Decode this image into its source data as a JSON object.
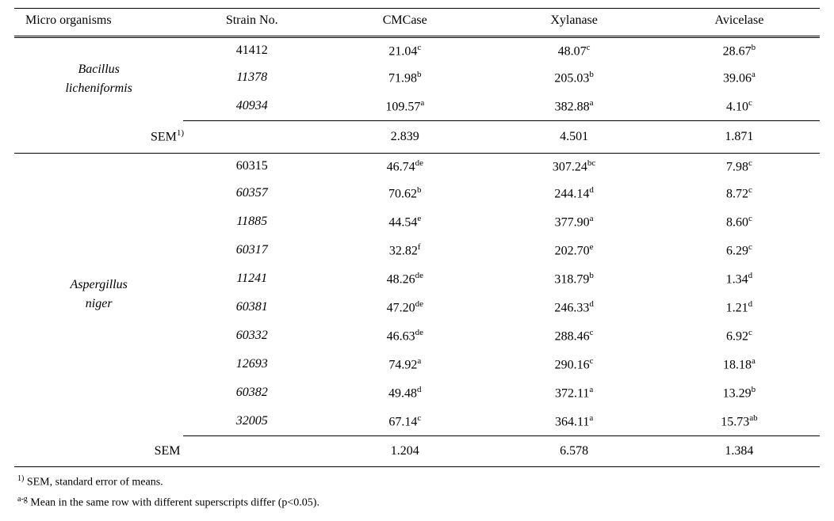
{
  "headers": [
    "Micro organisms",
    "Strain No.",
    "CMCase",
    "Xylanase",
    "Avicelase"
  ],
  "group1": {
    "organism_line1": "Bacillus",
    "organism_line2": "licheniformis",
    "rows": [
      {
        "strain": "41412",
        "cmc": "21.04",
        "cmc_sup": "c",
        "xyl": "48.07",
        "xyl_sup": "c",
        "avi": "28.67",
        "avi_sup": "b"
      },
      {
        "strain": "11378",
        "cmc": "71.98",
        "cmc_sup": "b",
        "xyl": "205.03",
        "xyl_sup": "b",
        "avi": "39.06",
        "avi_sup": "a"
      },
      {
        "strain": "40934",
        "cmc": "109.57",
        "cmc_sup": "a",
        "xyl": "382.88",
        "xyl_sup": "a",
        "avi": "4.10",
        "avi_sup": "c"
      }
    ],
    "sem_label": "SEM",
    "sem_sup": "1)",
    "sem_cmc": "2.839",
    "sem_xyl": "4.501",
    "sem_avi": "1.871"
  },
  "group2": {
    "organism_line1": "Aspergillus",
    "organism_line2": "niger",
    "rows": [
      {
        "strain": "60315",
        "cmc": "46.74",
        "cmc_sup": "de",
        "xyl": "307.24",
        "xyl_sup": "bc",
        "avi": "7.98",
        "avi_sup": "c"
      },
      {
        "strain": "60357",
        "cmc": "70.62",
        "cmc_sup": "b",
        "xyl": "244.14",
        "xyl_sup": "d",
        "avi": "8.72",
        "avi_sup": "c"
      },
      {
        "strain": "11885",
        "cmc": "44.54",
        "cmc_sup": "e",
        "xyl": "377.90",
        "xyl_sup": "a",
        "avi": "8.60",
        "avi_sup": "c"
      },
      {
        "strain": "60317",
        "cmc": "32.82",
        "cmc_sup": "f",
        "xyl": "202.70",
        "xyl_sup": "e",
        "avi": "6.29",
        "avi_sup": "c"
      },
      {
        "strain": "11241",
        "cmc": "48.26",
        "cmc_sup": "de",
        "xyl": "318.79",
        "xyl_sup": "b",
        "avi": "1.34",
        "avi_sup": "d"
      },
      {
        "strain": "60381",
        "cmc": "47.20",
        "cmc_sup": "de",
        "xyl": "246.33",
        "xyl_sup": "d",
        "avi": "1.21",
        "avi_sup": "d"
      },
      {
        "strain": "60332",
        "cmc": "46.63",
        "cmc_sup": "de",
        "xyl": "288.46",
        "xyl_sup": "c",
        "avi": "6.92",
        "avi_sup": "c"
      },
      {
        "strain": "12693",
        "cmc": "74.92",
        "cmc_sup": "a",
        "xyl": "290.16",
        "xyl_sup": "c",
        "avi": "18.18",
        "avi_sup": "a"
      },
      {
        "strain": "60382",
        "cmc": "49.48",
        "cmc_sup": "d",
        "xyl": "372.11",
        "xyl_sup": "a",
        "avi": "13.29",
        "avi_sup": "b"
      },
      {
        "strain": "32005",
        "cmc": "67.14",
        "cmc_sup": "c",
        "xyl": "364.11",
        "xyl_sup": "a",
        "avi": "15.73",
        "avi_sup": "ab"
      }
    ],
    "sem_label": "SEM",
    "sem_cmc": "1.204",
    "sem_xyl": "6.578",
    "sem_avi": "1.384"
  },
  "footnotes": {
    "f1_sup": "1)",
    "f1_text": " SEM, standard error of means.",
    "f2_sup": "a-g",
    "f2_text": " Mean in the same row with different superscripts differ (p<0.05)."
  }
}
